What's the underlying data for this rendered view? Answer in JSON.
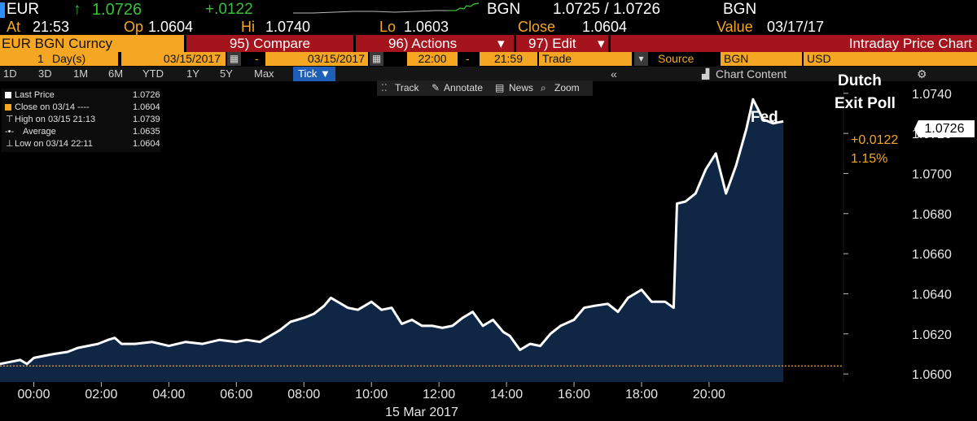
{
  "quote": {
    "ticker": "EUR",
    "arrow": "↑",
    "last": "1.0726",
    "change": "+.0122",
    "source": "BGN",
    "bid_ask": "1.0725 / 1.0726",
    "source2": "BGN",
    "at_label": "At",
    "at_time": "21:53",
    "op_label": "Op",
    "open": "1.0604",
    "hi_label": "Hi",
    "high": "1.0740",
    "lo_label": "Lo",
    "low": "1.0603",
    "close_label": "Close",
    "close": "1.0604",
    "value_label": "Value",
    "value_date": "03/17/17"
  },
  "menu": {
    "security": "EUR BGN Curncy",
    "compare": "95) Compare",
    "actions": "96) Actions",
    "actions_arrow": "▾",
    "edit": "97) Edit",
    "edit_arrow": "▾",
    "title": "Intraday Price Chart"
  },
  "settings": {
    "period_num": "1",
    "period_unit": "Day(s)",
    "start_date": "03/15/2017",
    "dash": "-",
    "end_date": "03/15/2017",
    "start_time": "22:00",
    "dash2": "-",
    "end_time": "21:59",
    "field": "Trade",
    "field_arrow": "▾",
    "source_label": "Source",
    "source_value": "BGN",
    "currency": "USD"
  },
  "tabs": [
    "1D",
    "3D",
    "1M",
    "6M",
    "YTD",
    "1Y",
    "5Y",
    "Max",
    "Tick ▼"
  ],
  "chart_content": {
    "collapse": "«",
    "label": "Chart Content",
    "gear": "⚙"
  },
  "toolbar": {
    "track": "Track",
    "annotate": "Annotate",
    "news": "News",
    "zoom": "Zoom"
  },
  "legend": {
    "last_price_label": "Last Price",
    "last_price": "1.0726",
    "close_label": "Close on 03/14 ----",
    "close_value": "1.0604",
    "high_label": "High on 03/15 21:13",
    "high_value": "1.0739",
    "average_label": "Average",
    "average_value": "1.0635",
    "low_label": "Low on 03/14 22:11",
    "low_value": "1.0604"
  },
  "annotations": {
    "fed": "Fed",
    "dutch_1": "Dutch",
    "dutch_2": "Exit Poll",
    "change_abs": "+0.0122",
    "change_pct": "1.15%",
    "last_tag": "1.0726"
  },
  "colors": {
    "line": "#ffffff",
    "fill": "#0f2744",
    "close_line": "#f5a623",
    "accent": "#f5a623",
    "menu_red": "#a5131c",
    "tick_tab": "#1f5fb8"
  },
  "chart_data": {
    "type": "area",
    "xlabel": "15 Mar 2017",
    "x_ticks": [
      "00:00",
      "02:00",
      "04:00",
      "06:00",
      "08:00",
      "10:00",
      "12:00",
      "14:00",
      "16:00",
      "18:00",
      "20:00"
    ],
    "y_ticks": [
      "1.0600",
      "1.0620",
      "1.0640",
      "1.0660",
      "1.0680",
      "1.0700",
      "1.0720",
      "1.0740"
    ],
    "ylim": [
      1.0596,
      1.0746
    ],
    "x_hours_range": [
      -1.0,
      23.98
    ],
    "close_level": 1.0604,
    "series": [
      {
        "name": "Last Price",
        "x_hours": [
          -1.0,
          -0.7,
          -0.4,
          -0.2,
          0.0,
          0.3,
          0.6,
          1.0,
          1.3,
          1.6,
          1.9,
          2.2,
          2.4,
          2.6,
          3.0,
          3.5,
          4.0,
          4.5,
          5.0,
          5.5,
          6.0,
          6.3,
          6.7,
          7.0,
          7.3,
          7.6,
          8.0,
          8.3,
          8.6,
          8.8,
          9.0,
          9.3,
          9.6,
          10.0,
          10.3,
          10.6,
          10.9,
          11.2,
          11.5,
          11.8,
          12.1,
          12.4,
          12.7,
          13.0,
          13.3,
          13.6,
          13.9,
          14.1,
          14.4,
          14.7,
          15.0,
          15.3,
          15.6,
          16.0,
          16.3,
          16.6,
          17.0,
          17.3,
          17.6,
          18.0,
          18.3,
          18.7,
          18.95,
          19.05,
          19.3,
          19.6,
          19.9,
          20.2,
          20.5,
          20.8,
          21.1,
          21.3,
          21.6,
          21.9,
          22.2
        ],
        "values": [
          1.0605,
          1.0606,
          1.0607,
          1.0605,
          1.0608,
          1.0609,
          1.061,
          1.0611,
          1.0613,
          1.0614,
          1.0615,
          1.0617,
          1.0618,
          1.0615,
          1.0615,
          1.0616,
          1.0614,
          1.0616,
          1.0615,
          1.0617,
          1.0616,
          1.0617,
          1.0616,
          1.0619,
          1.0622,
          1.0626,
          1.0628,
          1.063,
          1.0634,
          1.0638,
          1.0636,
          1.0633,
          1.0632,
          1.0636,
          1.0632,
          1.0633,
          1.0625,
          1.0627,
          1.0624,
          1.0624,
          1.0623,
          1.0624,
          1.0628,
          1.0631,
          1.0624,
          1.0627,
          1.0621,
          1.0619,
          1.0612,
          1.0615,
          1.0614,
          1.062,
          1.0624,
          1.0627,
          1.0633,
          1.0634,
          1.0635,
          1.0631,
          1.0638,
          1.0642,
          1.0636,
          1.0636,
          1.0633,
          1.0685,
          1.0686,
          1.069,
          1.0702,
          1.071,
          1.069,
          1.0704,
          1.0722,
          1.0737,
          1.0727,
          1.0725,
          1.0726
        ]
      }
    ]
  }
}
